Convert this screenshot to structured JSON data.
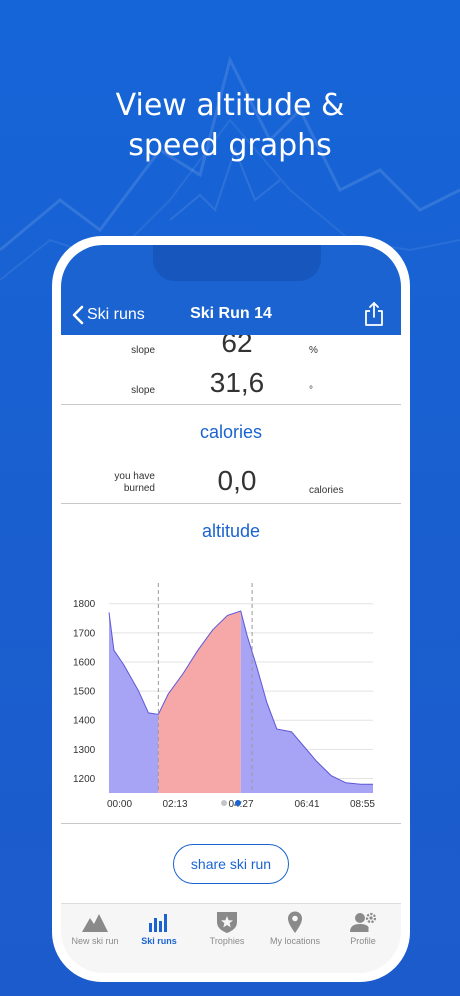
{
  "headline": {
    "line1": "View altitude &",
    "line2": "speed graphs"
  },
  "nav": {
    "back_label": "Ski runs",
    "title": "Ski Run 14"
  },
  "stats": {
    "slope1": {
      "label": "slope",
      "value": "62",
      "unit": "%"
    },
    "slope2": {
      "label": "slope",
      "value": "31,6",
      "unit": "°"
    }
  },
  "calories": {
    "title": "calories",
    "label_line1": "you have",
    "label_line2": "burned",
    "value": "0,0",
    "unit": "calories"
  },
  "altitude": {
    "title": "altitude"
  },
  "chart_data": {
    "type": "area",
    "title": "altitude",
    "x_tick_labels": [
      "00:00",
      "02:13",
      "04:27",
      "06:41",
      "08:55"
    ],
    "y_ticks": [
      1200,
      1300,
      1400,
      1500,
      1600,
      1700,
      1800
    ],
    "ylim": [
      1150,
      1830
    ],
    "x_range_minutes": [
      0,
      535
    ],
    "grid": true,
    "segments": [
      {
        "color": "#a7a4f5",
        "x": [
          0,
          10,
          30,
          60,
          80,
          100
        ],
        "y": [
          1770,
          1640,
          1590,
          1500,
          1425,
          1420
        ]
      },
      {
        "color": "#f6a8a8",
        "x": [
          100,
          120,
          150,
          180,
          210,
          240,
          267
        ],
        "y": [
          1420,
          1490,
          1560,
          1640,
          1710,
          1760,
          1775
        ]
      },
      {
        "color": "#a7a4f5",
        "x": [
          267,
          280,
          300,
          320,
          340,
          370,
          390,
          420,
          450,
          480,
          510,
          535
        ],
        "y": [
          1775,
          1690,
          1580,
          1460,
          1370,
          1360,
          1320,
          1260,
          1210,
          1185,
          1180,
          1180
        ]
      }
    ],
    "markers_x": [
      100,
      290
    ]
  },
  "pager": {
    "active_index": 1,
    "count": 2,
    "active_color": "#1a63d1",
    "inactive_color": "#c4c4c4"
  },
  "share_button": {
    "label": "share ski run"
  },
  "tabs": [
    {
      "label": "New ski run",
      "icon": "mountain-icon",
      "active": false
    },
    {
      "label": "Ski runs",
      "icon": "bar-chart-icon",
      "active": true
    },
    {
      "label": "Trophies",
      "icon": "trophy-shield-icon",
      "active": false
    },
    {
      "label": "My locations",
      "icon": "location-pin-icon",
      "active": false
    },
    {
      "label": "Profile",
      "icon": "profile-gear-icon",
      "active": false
    }
  ],
  "colors": {
    "accent": "#1a63d1",
    "background": "#1565d8"
  }
}
